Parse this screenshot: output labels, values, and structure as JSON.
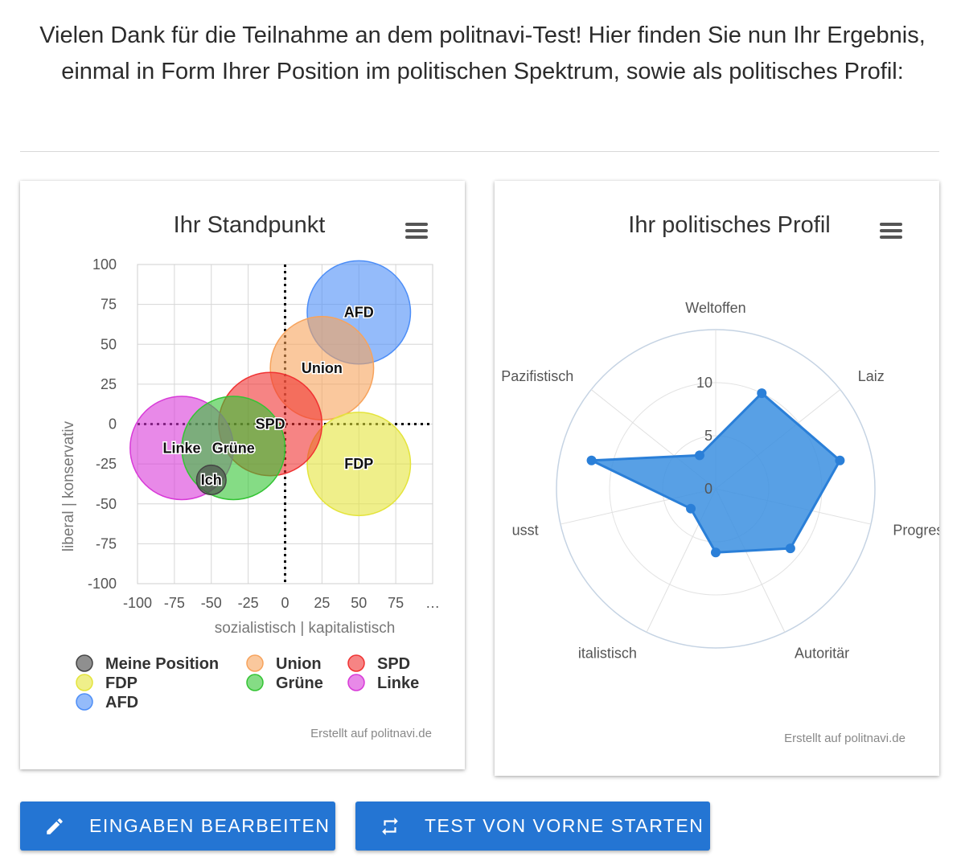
{
  "intro_text": "Vielen Dank für die Teilnahme an dem politnavi-Test! Hier finden Sie nun Ihr Ergebnis, einmal in Form Ihrer Position im politischen Spektrum, sowie als politisches Profil:",
  "buttons": {
    "edit_label": "EINGABEN BEARBEITEN",
    "edit_icon": "pencil-icon",
    "restart_label": "TEST VON VORNE STARTEN",
    "restart_icon": "repeat-icon"
  },
  "colors": {
    "button": "#2475d3",
    "radar_fill": "#3b8fe0"
  },
  "chart_data": [
    {
      "type": "scatter",
      "title": "Ihr Standpunkt",
      "menu_icon": "hamburger-menu-icon",
      "xlabel": "sozialistisch | kapitalistisch",
      "ylabel": "liberal | konservativ",
      "xlim": [
        -100,
        100
      ],
      "ylim": [
        -100,
        100
      ],
      "x_ticks": [
        "-100",
        "-75",
        "-50",
        "-25",
        "0",
        "25",
        "50",
        "75",
        "…"
      ],
      "y_ticks": [
        "100",
        "75",
        "50",
        "25",
        "0",
        "-25",
        "-50",
        "-75",
        "-100"
      ],
      "grid": true,
      "legend_position": "bottom",
      "series": [
        {
          "name": "Meine Position",
          "label": "Ich",
          "x": -50,
          "y": -35,
          "radius": 10,
          "color": "#444444"
        },
        {
          "name": "Union",
          "label": "Union",
          "x": 25,
          "y": 35,
          "radius": 35,
          "color": "#f7a35c"
        },
        {
          "name": "SPD",
          "label": "SPD",
          "x": -10,
          "y": 0,
          "radius": 35,
          "color": "#f03232"
        },
        {
          "name": "FDP",
          "label": "FDP",
          "x": 50,
          "y": -25,
          "radius": 35,
          "color": "#e4e43c"
        },
        {
          "name": "Grüne",
          "label": "Grüne",
          "x": -35,
          "y": -15,
          "radius": 35,
          "color": "#34c434"
        },
        {
          "name": "Linke",
          "label": "Linke",
          "x": -70,
          "y": -15,
          "radius": 35,
          "color": "#d83ad8"
        },
        {
          "name": "AFD",
          "label": "AFD",
          "x": 50,
          "y": 70,
          "radius": 35,
          "color": "#4d8ef7"
        }
      ],
      "credits": "Erstellt auf politnavi.de"
    },
    {
      "type": "radar",
      "title": "Ihr politisches Profil",
      "menu_icon": "hamburger-menu-icon",
      "categories": [
        "Weltoffen",
        "Laiz",
        "Progress",
        "Autoritär",
        "italistisch",
        "usst",
        "Pazifistisch"
      ],
      "radial_ticks": [
        "0",
        "5",
        "10"
      ],
      "rmax": 15,
      "values": [
        10,
        12,
        9,
        6,
        3,
        12,
        3.5
      ],
      "credits": "Erstellt auf politnavi.de"
    }
  ]
}
